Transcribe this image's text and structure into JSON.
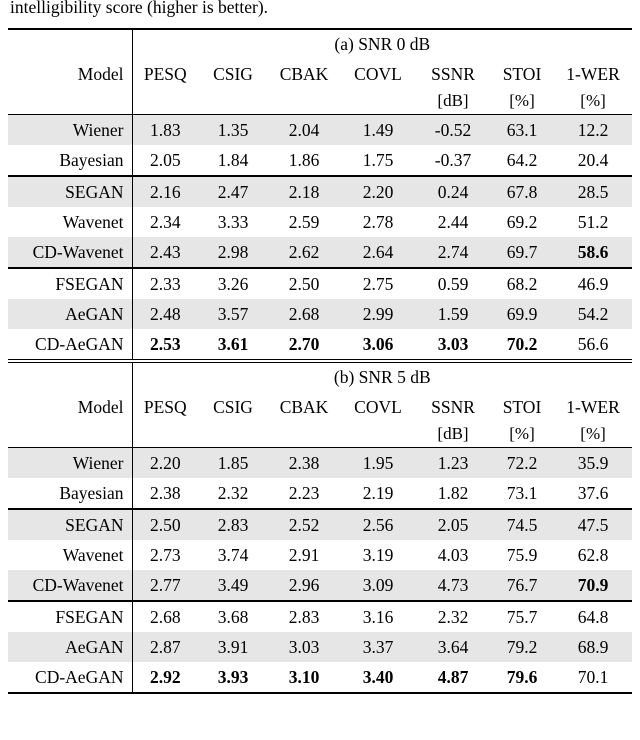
{
  "caption": "intelligibility score (higher is better).",
  "colors": {
    "row_shade": "#e6e6e6",
    "rule": "#000000",
    "background": "#ffffff"
  },
  "table": {
    "columns": [
      "Model",
      "PESQ",
      "CSIG",
      "CBAK",
      "COVL",
      "SSNR",
      "STOI",
      "1-WER"
    ],
    "units": [
      "",
      "",
      "",
      "",
      "",
      "[dB]",
      "[%]",
      "[%]"
    ],
    "sections": [
      {
        "title": "(a) SNR 0 dB",
        "groups": [
          [
            {
              "model": "Wiener",
              "values": [
                "1.83",
                "1.35",
                "2.04",
                "1.49",
                "-0.52",
                "63.1",
                "12.2"
              ],
              "bold": []
            },
            {
              "model": "Bayesian",
              "values": [
                "2.05",
                "1.84",
                "1.86",
                "1.75",
                "-0.37",
                "64.2",
                "20.4"
              ],
              "bold": []
            }
          ],
          [
            {
              "model": "SEGAN",
              "values": [
                "2.16",
                "2.47",
                "2.18",
                "2.20",
                "0.24",
                "67.8",
                "28.5"
              ],
              "bold": []
            },
            {
              "model": "Wavenet",
              "values": [
                "2.34",
                "3.33",
                "2.59",
                "2.78",
                "2.44",
                "69.2",
                "51.2"
              ],
              "bold": []
            },
            {
              "model": "CD-Wavenet",
              "values": [
                "2.43",
                "2.98",
                "2.62",
                "2.64",
                "2.74",
                "69.7",
                "58.6"
              ],
              "bold": [
                6
              ]
            }
          ],
          [
            {
              "model": "FSEGAN",
              "values": [
                "2.33",
                "3.26",
                "2.50",
                "2.75",
                "0.59",
                "68.2",
                "46.9"
              ],
              "bold": []
            },
            {
              "model": "AeGAN",
              "values": [
                "2.48",
                "3.57",
                "2.68",
                "2.99",
                "1.59",
                "69.9",
                "54.2"
              ],
              "bold": []
            },
            {
              "model": "CD-AeGAN",
              "values": [
                "2.53",
                "3.61",
                "2.70",
                "3.06",
                "3.03",
                "70.2",
                "56.6"
              ],
              "bold": [
                0,
                1,
                2,
                3,
                4,
                5
              ]
            }
          ]
        ]
      },
      {
        "title": "(b) SNR 5 dB",
        "groups": [
          [
            {
              "model": "Wiener",
              "values": [
                "2.20",
                "1.85",
                "2.38",
                "1.95",
                "1.23",
                "72.2",
                "35.9"
              ],
              "bold": []
            },
            {
              "model": "Bayesian",
              "values": [
                "2.38",
                "2.32",
                "2.23",
                "2.19",
                "1.82",
                "73.1",
                "37.6"
              ],
              "bold": []
            }
          ],
          [
            {
              "model": "SEGAN",
              "values": [
                "2.50",
                "2.83",
                "2.52",
                "2.56",
                "2.05",
                "74.5",
                "47.5"
              ],
              "bold": []
            },
            {
              "model": "Wavenet",
              "values": [
                "2.73",
                "3.74",
                "2.91",
                "3.19",
                "4.03",
                "75.9",
                "62.8"
              ],
              "bold": []
            },
            {
              "model": "CD-Wavenet",
              "values": [
                "2.77",
                "3.49",
                "2.96",
                "3.09",
                "4.73",
                "76.7",
                "70.9"
              ],
              "bold": [
                6
              ]
            }
          ],
          [
            {
              "model": "FSEGAN",
              "values": [
                "2.68",
                "3.68",
                "2.83",
                "3.16",
                "2.32",
                "75.7",
                "64.8"
              ],
              "bold": []
            },
            {
              "model": "AeGAN",
              "values": [
                "2.87",
                "3.91",
                "3.03",
                "3.37",
                "3.64",
                "79.2",
                "68.9"
              ],
              "bold": []
            },
            {
              "model": "CD-AeGAN",
              "values": [
                "2.92",
                "3.93",
                "3.10",
                "3.40",
                "4.87",
                "79.6",
                "70.1"
              ],
              "bold": [
                0,
                1,
                2,
                3,
                4,
                5
              ]
            }
          ]
        ]
      }
    ]
  }
}
